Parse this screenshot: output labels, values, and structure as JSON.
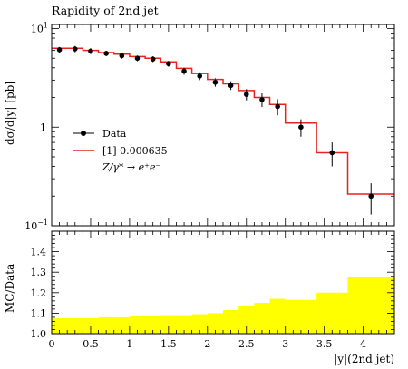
{
  "chart_data": [
    {
      "type": "line",
      "title": "Rapidity of 2nd jet",
      "ylabel": "dσ/d|y| [pb]",
      "yscale": "log",
      "ylim": [
        0.1,
        11
      ],
      "xlim": [
        0,
        4.4
      ],
      "y_ticks": [
        {
          "value": 0.1,
          "label": "10",
          "exp": "−1"
        },
        {
          "value": 1,
          "label": "1",
          "exp": ""
        },
        {
          "value": 10,
          "label": "10",
          "exp": "1"
        }
      ],
      "legend": {
        "position": "center-left",
        "entries": [
          {
            "label": "Data",
            "style": "marker"
          },
          {
            "label": "[1] 0.000635",
            "style": "line"
          },
          {
            "label": "Z/γ* → e⁺e⁻",
            "style": "text"
          }
        ]
      },
      "series": [
        {
          "name": "Data",
          "x": [
            0.1,
            0.3,
            0.5,
            0.7,
            0.9,
            1.1,
            1.3,
            1.5,
            1.7,
            1.9,
            2.1,
            2.3,
            2.5,
            2.7,
            2.9,
            3.2,
            3.6,
            4.1
          ],
          "y": [
            6.1,
            6.2,
            5.9,
            5.6,
            5.3,
            5.0,
            4.9,
            4.4,
            3.7,
            3.3,
            2.85,
            2.65,
            2.15,
            1.9,
            1.62,
            1.0,
            0.55,
            0.2
          ],
          "yerr": [
            0.4,
            0.45,
            0.4,
            0.35,
            0.35,
            0.33,
            0.33,
            0.3,
            0.3,
            0.3,
            0.28,
            0.27,
            0.28,
            0.3,
            0.3,
            0.2,
            0.15,
            0.07
          ]
        },
        {
          "name": "[1] 0.000635",
          "color": "#e8221c",
          "bin_edges": [
            0,
            0.2,
            0.4,
            0.6,
            0.8,
            1.0,
            1.2,
            1.4,
            1.6,
            1.8,
            2.0,
            2.2,
            2.4,
            2.6,
            2.8,
            3.0,
            3.4,
            3.8,
            4.4
          ],
          "values": [
            6.3,
            6.3,
            6.0,
            5.7,
            5.5,
            5.2,
            5.0,
            4.6,
            3.95,
            3.5,
            3.05,
            2.75,
            2.35,
            2.0,
            1.7,
            1.1,
            0.55,
            0.21
          ]
        }
      ]
    },
    {
      "type": "area",
      "ylabel": "MC/Data",
      "xlabel": "|y|(2nd jet)",
      "xlim": [
        0,
        4.4
      ],
      "ylim": [
        1.0,
        1.5
      ],
      "y_ticks": [
        "1.0",
        "1.1",
        "1.2",
        "1.3",
        "1.4"
      ],
      "x_ticks": [
        "0",
        "0.5",
        "1",
        "1.5",
        "2",
        "2.5",
        "3",
        "3.5",
        "4"
      ],
      "color": "#ffff00",
      "bin_edges": [
        0,
        0.2,
        0.4,
        0.6,
        0.8,
        1.0,
        1.2,
        1.4,
        1.6,
        1.8,
        2.0,
        2.2,
        2.4,
        2.6,
        2.8,
        3.0,
        3.4,
        3.8,
        4.4
      ],
      "values": [
        1.075,
        1.075,
        1.075,
        1.08,
        1.08,
        1.085,
        1.085,
        1.09,
        1.09,
        1.095,
        1.1,
        1.115,
        1.135,
        1.15,
        1.17,
        1.165,
        1.2,
        1.275
      ]
    }
  ]
}
